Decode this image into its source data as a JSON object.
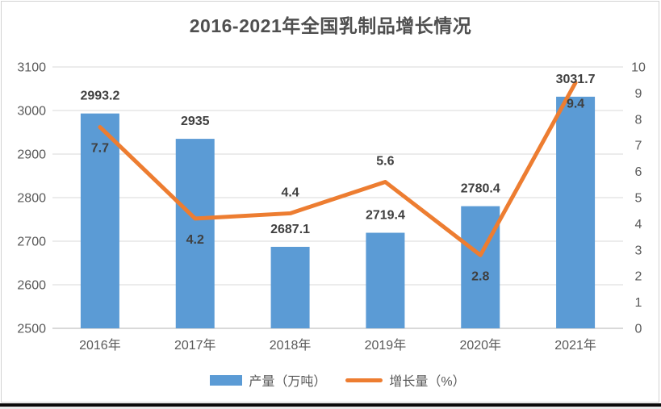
{
  "title": "2016-2021年全国乳制品增长情况",
  "colors": {
    "bar": "#5B9BD5",
    "line": "#ED7D31",
    "grid": "#D9D9D9",
    "axis_text": "#595959",
    "data_label_text": "#3F3F3F",
    "title_text": "#4F4F4F",
    "frame_border": "#D2D2D2",
    "bottom_bar": "#0A0A0A"
  },
  "chart_data": {
    "type": "combo",
    "title": "2016-2021年全国乳制品增长情况",
    "categories": [
      "2016年",
      "2017年",
      "2018年",
      "2019年",
      "2020年",
      "2021年"
    ],
    "series": [
      {
        "name": "产量（万吨）",
        "type": "bar",
        "axis": "left",
        "color": "#5B9BD5",
        "values": [
          2993.2,
          2935,
          2687.1,
          2719.4,
          2780.4,
          3031.7
        ],
        "labels": [
          "2993.2",
          "2935",
          "2687.1",
          "2719.4",
          "2780.4",
          "3031.7"
        ]
      },
      {
        "name": "增长量（%）",
        "type": "line",
        "axis": "right",
        "color": "#ED7D31",
        "values": [
          7.7,
          4.2,
          4.4,
          5.6,
          2.8,
          9.4
        ],
        "labels": [
          "7.7",
          "4.2",
          "4.4",
          "5.6",
          "2.8",
          "9.4"
        ],
        "label_side": [
          "below",
          "below",
          "above",
          "above",
          "below",
          "below"
        ]
      }
    ],
    "left_axis": {
      "min": 2500,
      "max": 3100,
      "step": 100,
      "ticks": [
        "3100",
        "3000",
        "2900",
        "2800",
        "2700",
        "2600",
        "2500"
      ]
    },
    "right_axis": {
      "min": 0,
      "max": 10,
      "step": 1,
      "ticks": [
        "10",
        "9",
        "8",
        "7",
        "6",
        "5",
        "4",
        "3",
        "2",
        "1",
        "0"
      ]
    },
    "grid": true,
    "legend_position": "bottom"
  }
}
